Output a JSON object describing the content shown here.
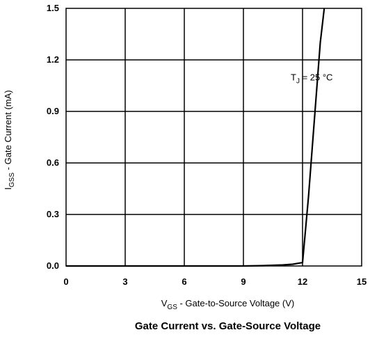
{
  "chart_data": {
    "type": "line",
    "title": "Gate Current vs. Gate-Source Voltage",
    "xlabel": {
      "main": "V",
      "sub": "GS",
      "rest": " - Gate-to-Source Voltage (V)"
    },
    "ylabel": {
      "main": "I",
      "sub": "GSS",
      "rest": " - Gate Current (mA)"
    },
    "xlim": [
      0,
      15
    ],
    "ylim": [
      0,
      1.5
    ],
    "xticks": [
      "0",
      "3",
      "6",
      "9",
      "12",
      "15"
    ],
    "xtick_values": [
      0,
      3,
      6,
      9,
      12,
      15
    ],
    "yticks": [
      "0.0",
      "0.3",
      "0.6",
      "0.9",
      "1.2",
      "1.5"
    ],
    "ytick_values": [
      0,
      0.3,
      0.6,
      0.9,
      1.2,
      1.5
    ],
    "grid": true,
    "annotation": {
      "main": "T",
      "sub": "J",
      "rest": " = 25 °C",
      "x": 11.4,
      "y": 1.08
    },
    "series": [
      {
        "x": [
          0,
          9,
          10,
          11,
          11.5,
          12.0,
          12.3,
          12.6,
          12.9,
          13.05,
          13.1
        ],
        "y": [
          0,
          0,
          0.002,
          0.006,
          0.01,
          0.02,
          0.4,
          0.85,
          1.3,
          1.45,
          1.5
        ]
      }
    ]
  }
}
